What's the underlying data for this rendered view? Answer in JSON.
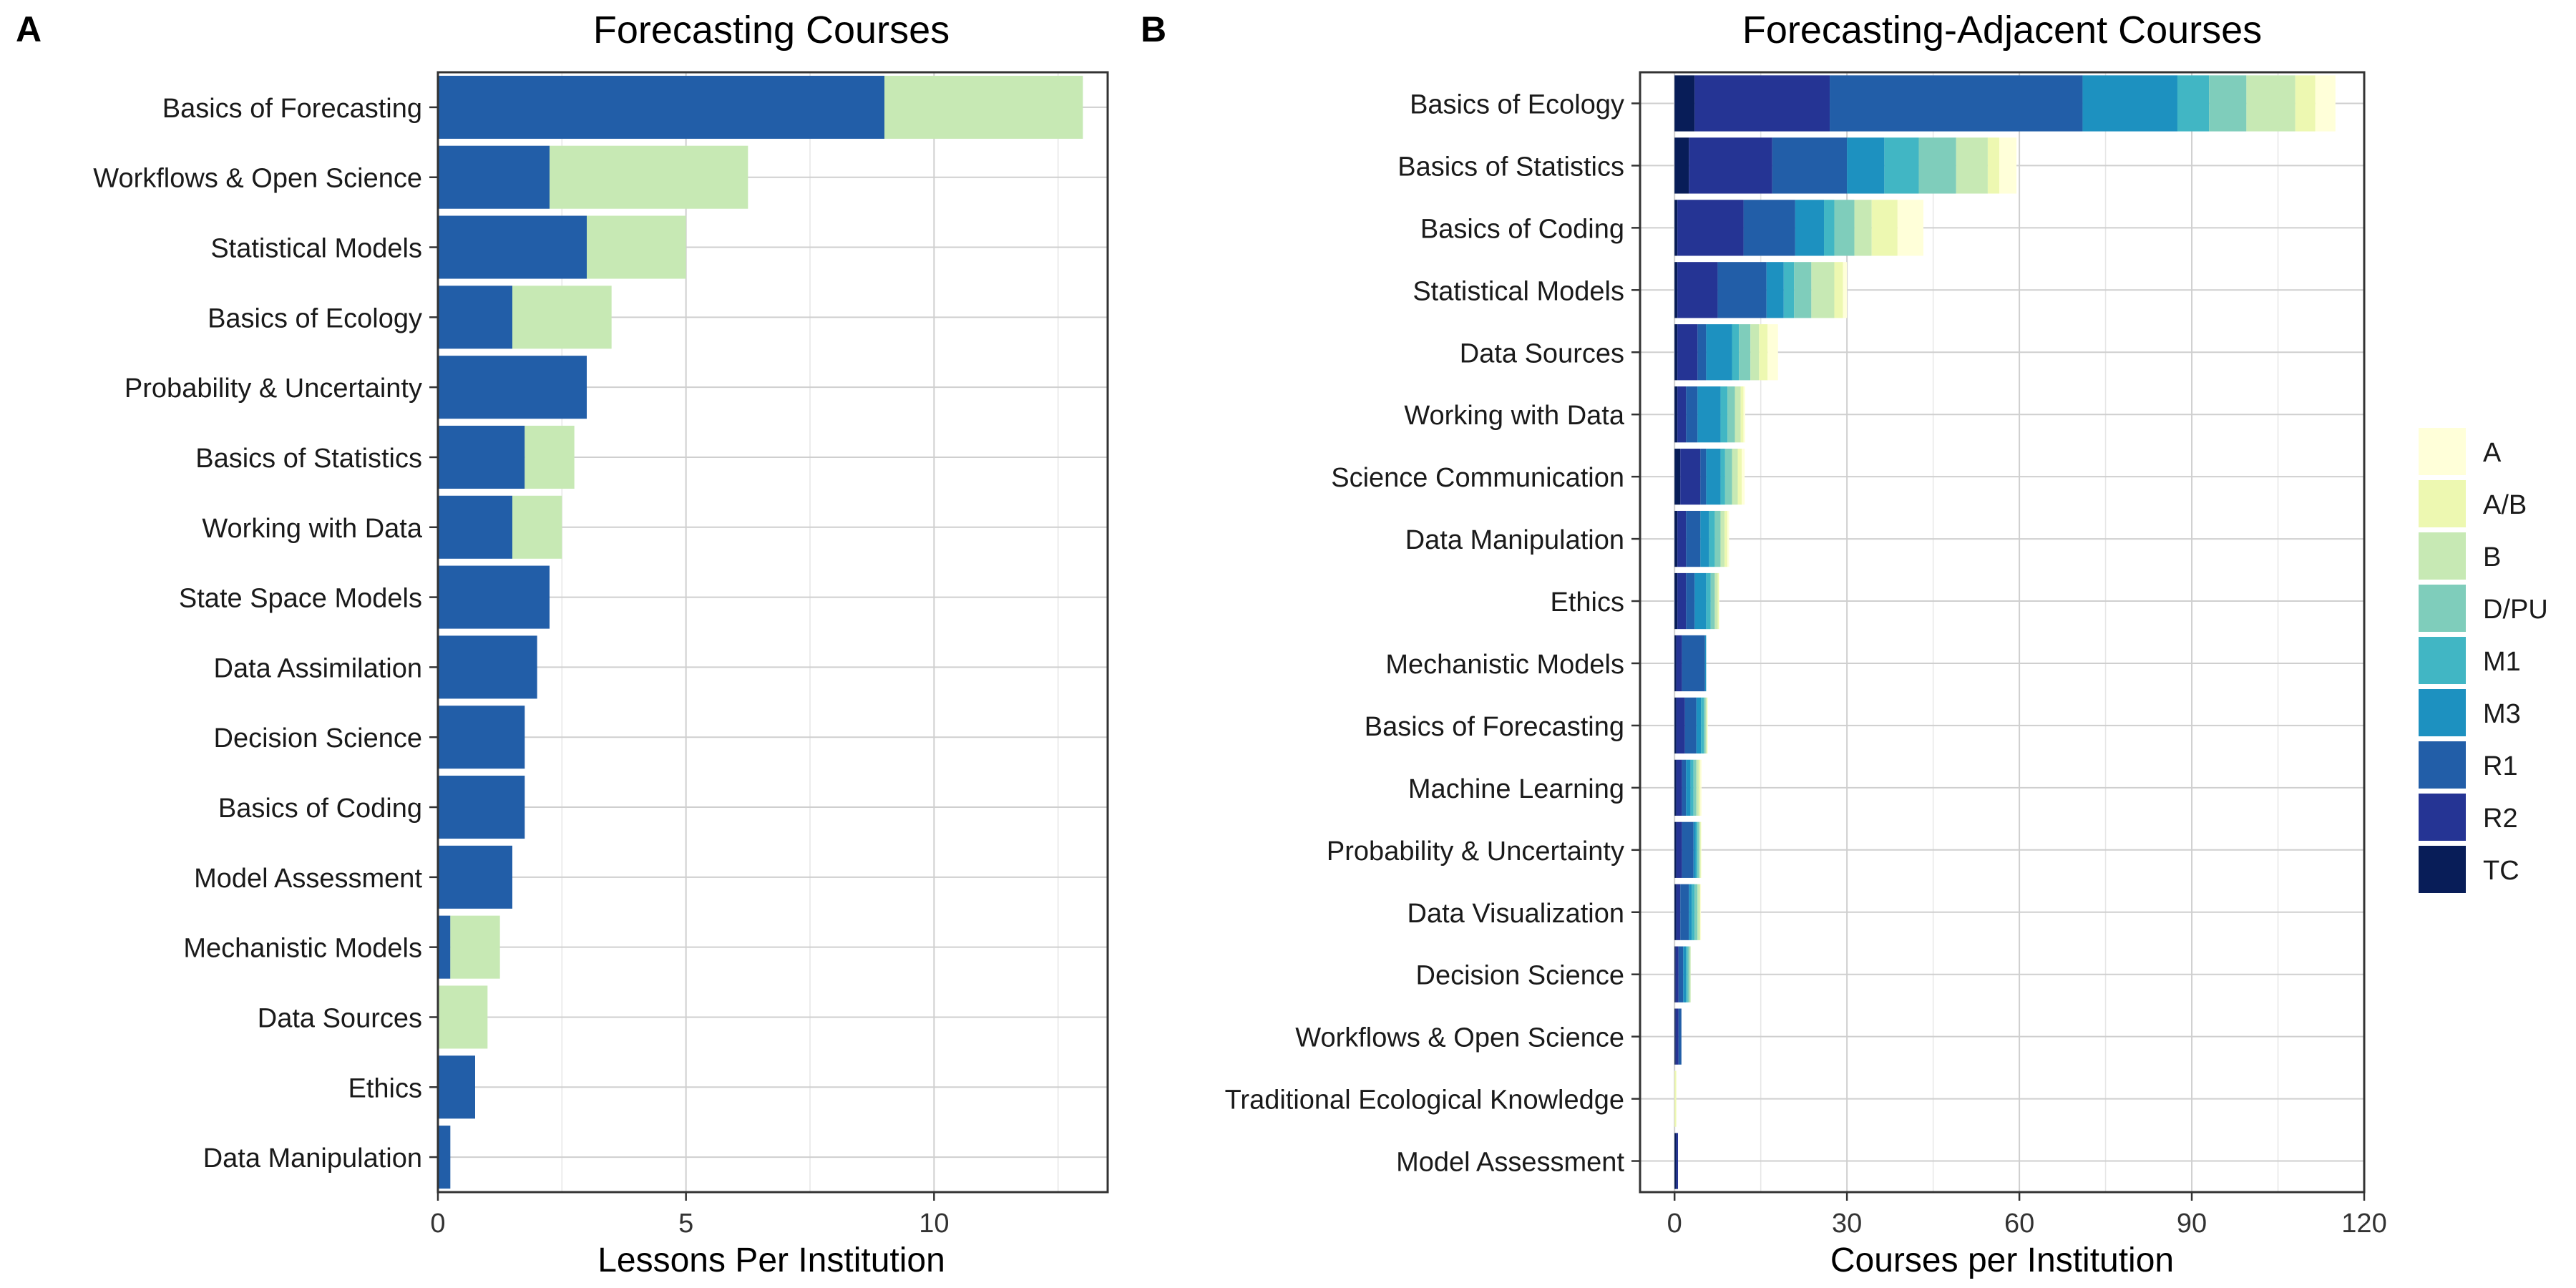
{
  "panel_a_label": "A",
  "panel_b_label": "B",
  "legend": {
    "items": [
      {
        "label": "A",
        "color": "#ffffd9"
      },
      {
        "label": "A/B",
        "color": "#edf8b1"
      },
      {
        "label": "B",
        "color": "#c7e9b4"
      },
      {
        "label": "D/PU",
        "color": "#7fcdbb"
      },
      {
        "label": "M1",
        "color": "#41b6c4"
      },
      {
        "label": "M3",
        "color": "#1d91c0"
      },
      {
        "label": "R1",
        "color": "#225ea8"
      },
      {
        "label": "R2",
        "color": "#253494"
      },
      {
        "label": "TC",
        "color": "#081d58"
      }
    ]
  },
  "chart_data": [
    {
      "type": "bar",
      "orientation": "horizontal",
      "stacked": true,
      "title": "Forecasting Courses",
      "xlabel": "Lessons Per Institution",
      "ylabel": "",
      "xlim": [
        0,
        13.5
      ],
      "xticks": [
        0,
        5,
        10
      ],
      "grid": true,
      "categories": [
        "Basics of Forecasting",
        "Workflows & Open Science",
        "Statistical Models",
        "Basics of Ecology",
        "Probability & Uncertainty",
        "Basics of Statistics",
        "Working with Data",
        "State Space Models",
        "Data Assimilation",
        "Decision Science",
        "Basics of Coding",
        "Model Assessment",
        "Mechanistic Models",
        "Data Sources",
        "Ethics",
        "Data Manipulation"
      ],
      "series": [
        {
          "name": "R1",
          "color": "#225ea8",
          "values": [
            9.0,
            2.25,
            3.0,
            1.5,
            3.0,
            1.75,
            1.5,
            2.25,
            2.0,
            1.75,
            1.75,
            1.5,
            0.25,
            0.0,
            0.75,
            0.25
          ]
        },
        {
          "name": "B",
          "color": "#c7e9b4",
          "values": [
            4.0,
            4.0,
            2.0,
            2.0,
            0.0,
            1.0,
            1.0,
            0.0,
            0.0,
            0.0,
            0.0,
            0.0,
            1.0,
            1.0,
            0.0,
            0.0
          ]
        }
      ]
    },
    {
      "type": "bar",
      "orientation": "horizontal",
      "stacked": true,
      "title": "Forecasting-Adjacent Courses",
      "xlabel": "Courses per Institution",
      "ylabel": "",
      "xlim": [
        -6,
        120
      ],
      "xticks": [
        0,
        30,
        60,
        90,
        120
      ],
      "grid": true,
      "categories": [
        "Basics of Ecology",
        "Basics of Statistics",
        "Basics of Coding",
        "Statistical Models",
        "Data Sources",
        "Working with Data",
        "Science Communication",
        "Data Manipulation",
        "Ethics",
        "Mechanistic Models",
        "Basics of Forecasting",
        "Machine Learning",
        "Probability & Uncertainty",
        "Data Visualization",
        "Decision Science",
        "Workflows & Open Science",
        "Traditional Ecological Knowledge",
        "Model Assessment"
      ],
      "series": [
        {
          "name": "TC",
          "color": "#081d58",
          "values": [
            3.5,
            2.5,
            0.5,
            0.5,
            0.5,
            0.5,
            1.0,
            0.5,
            0.5,
            0.3,
            0.3,
            0.3,
            0.3,
            0.3,
            0.2,
            0.2,
            0.0,
            0.3
          ]
        },
        {
          "name": "R2",
          "color": "#253494",
          "values": [
            23.5,
            14.5,
            11.5,
            7.0,
            3.5,
            1.5,
            3.5,
            1.5,
            1.5,
            1.0,
            1.5,
            1.0,
            1.0,
            0.7,
            0.5,
            0.5,
            0.0,
            0.3
          ]
        },
        {
          "name": "R1",
          "color": "#225ea8",
          "values": [
            44.0,
            13.0,
            9.0,
            8.5,
            1.5,
            2.0,
            1.0,
            2.5,
            1.5,
            4.0,
            2.0,
            0.7,
            2.0,
            1.5,
            0.8,
            0.5,
            0.0,
            0.0
          ]
        },
        {
          "name": "M3",
          "color": "#1d91c0",
          "values": [
            16.5,
            6.5,
            5.0,
            3.0,
            4.5,
            4.0,
            2.5,
            1.5,
            2.0,
            0.2,
            0.8,
            0.8,
            0.4,
            0.5,
            0.5,
            0.0,
            0.0,
            0.0
          ]
        },
        {
          "name": "M1",
          "color": "#41b6c4",
          "values": [
            5.5,
            6.0,
            1.8,
            1.8,
            1.2,
            1.2,
            0.8,
            1.0,
            0.8,
            0.0,
            0.5,
            0.5,
            0.3,
            0.5,
            0.3,
            0.0,
            0.0,
            0.0
          ]
        },
        {
          "name": "D/PU",
          "color": "#7fcdbb",
          "values": [
            6.5,
            6.5,
            3.5,
            3.0,
            2.0,
            1.3,
            1.2,
            1.0,
            0.7,
            0.0,
            0.3,
            0.5,
            0.3,
            0.5,
            0.3,
            0.0,
            0.0,
            0.0
          ]
        },
        {
          "name": "B",
          "color": "#c7e9b4",
          "values": [
            8.5,
            5.5,
            3.0,
            4.0,
            1.5,
            1.0,
            1.0,
            0.7,
            0.5,
            0.0,
            0.2,
            0.4,
            0.2,
            0.4,
            0.2,
            0.0,
            0.0,
            0.0
          ]
        },
        {
          "name": "A/B",
          "color": "#edf8b1",
          "values": [
            3.5,
            2.0,
            4.5,
            1.5,
            1.5,
            0.5,
            0.7,
            0.5,
            0.2,
            0.0,
            0.1,
            0.3,
            0.1,
            0.1,
            0.0,
            0.0,
            0.3,
            0.0
          ]
        },
        {
          "name": "A",
          "color": "#ffffd9",
          "values": [
            3.5,
            3.0,
            4.5,
            0.7,
            1.8,
            0.3,
            0.5,
            0.3,
            0.1,
            0.0,
            0.1,
            0.2,
            0.1,
            0.1,
            0.0,
            0.0,
            0.0,
            0.0
          ]
        }
      ]
    }
  ]
}
